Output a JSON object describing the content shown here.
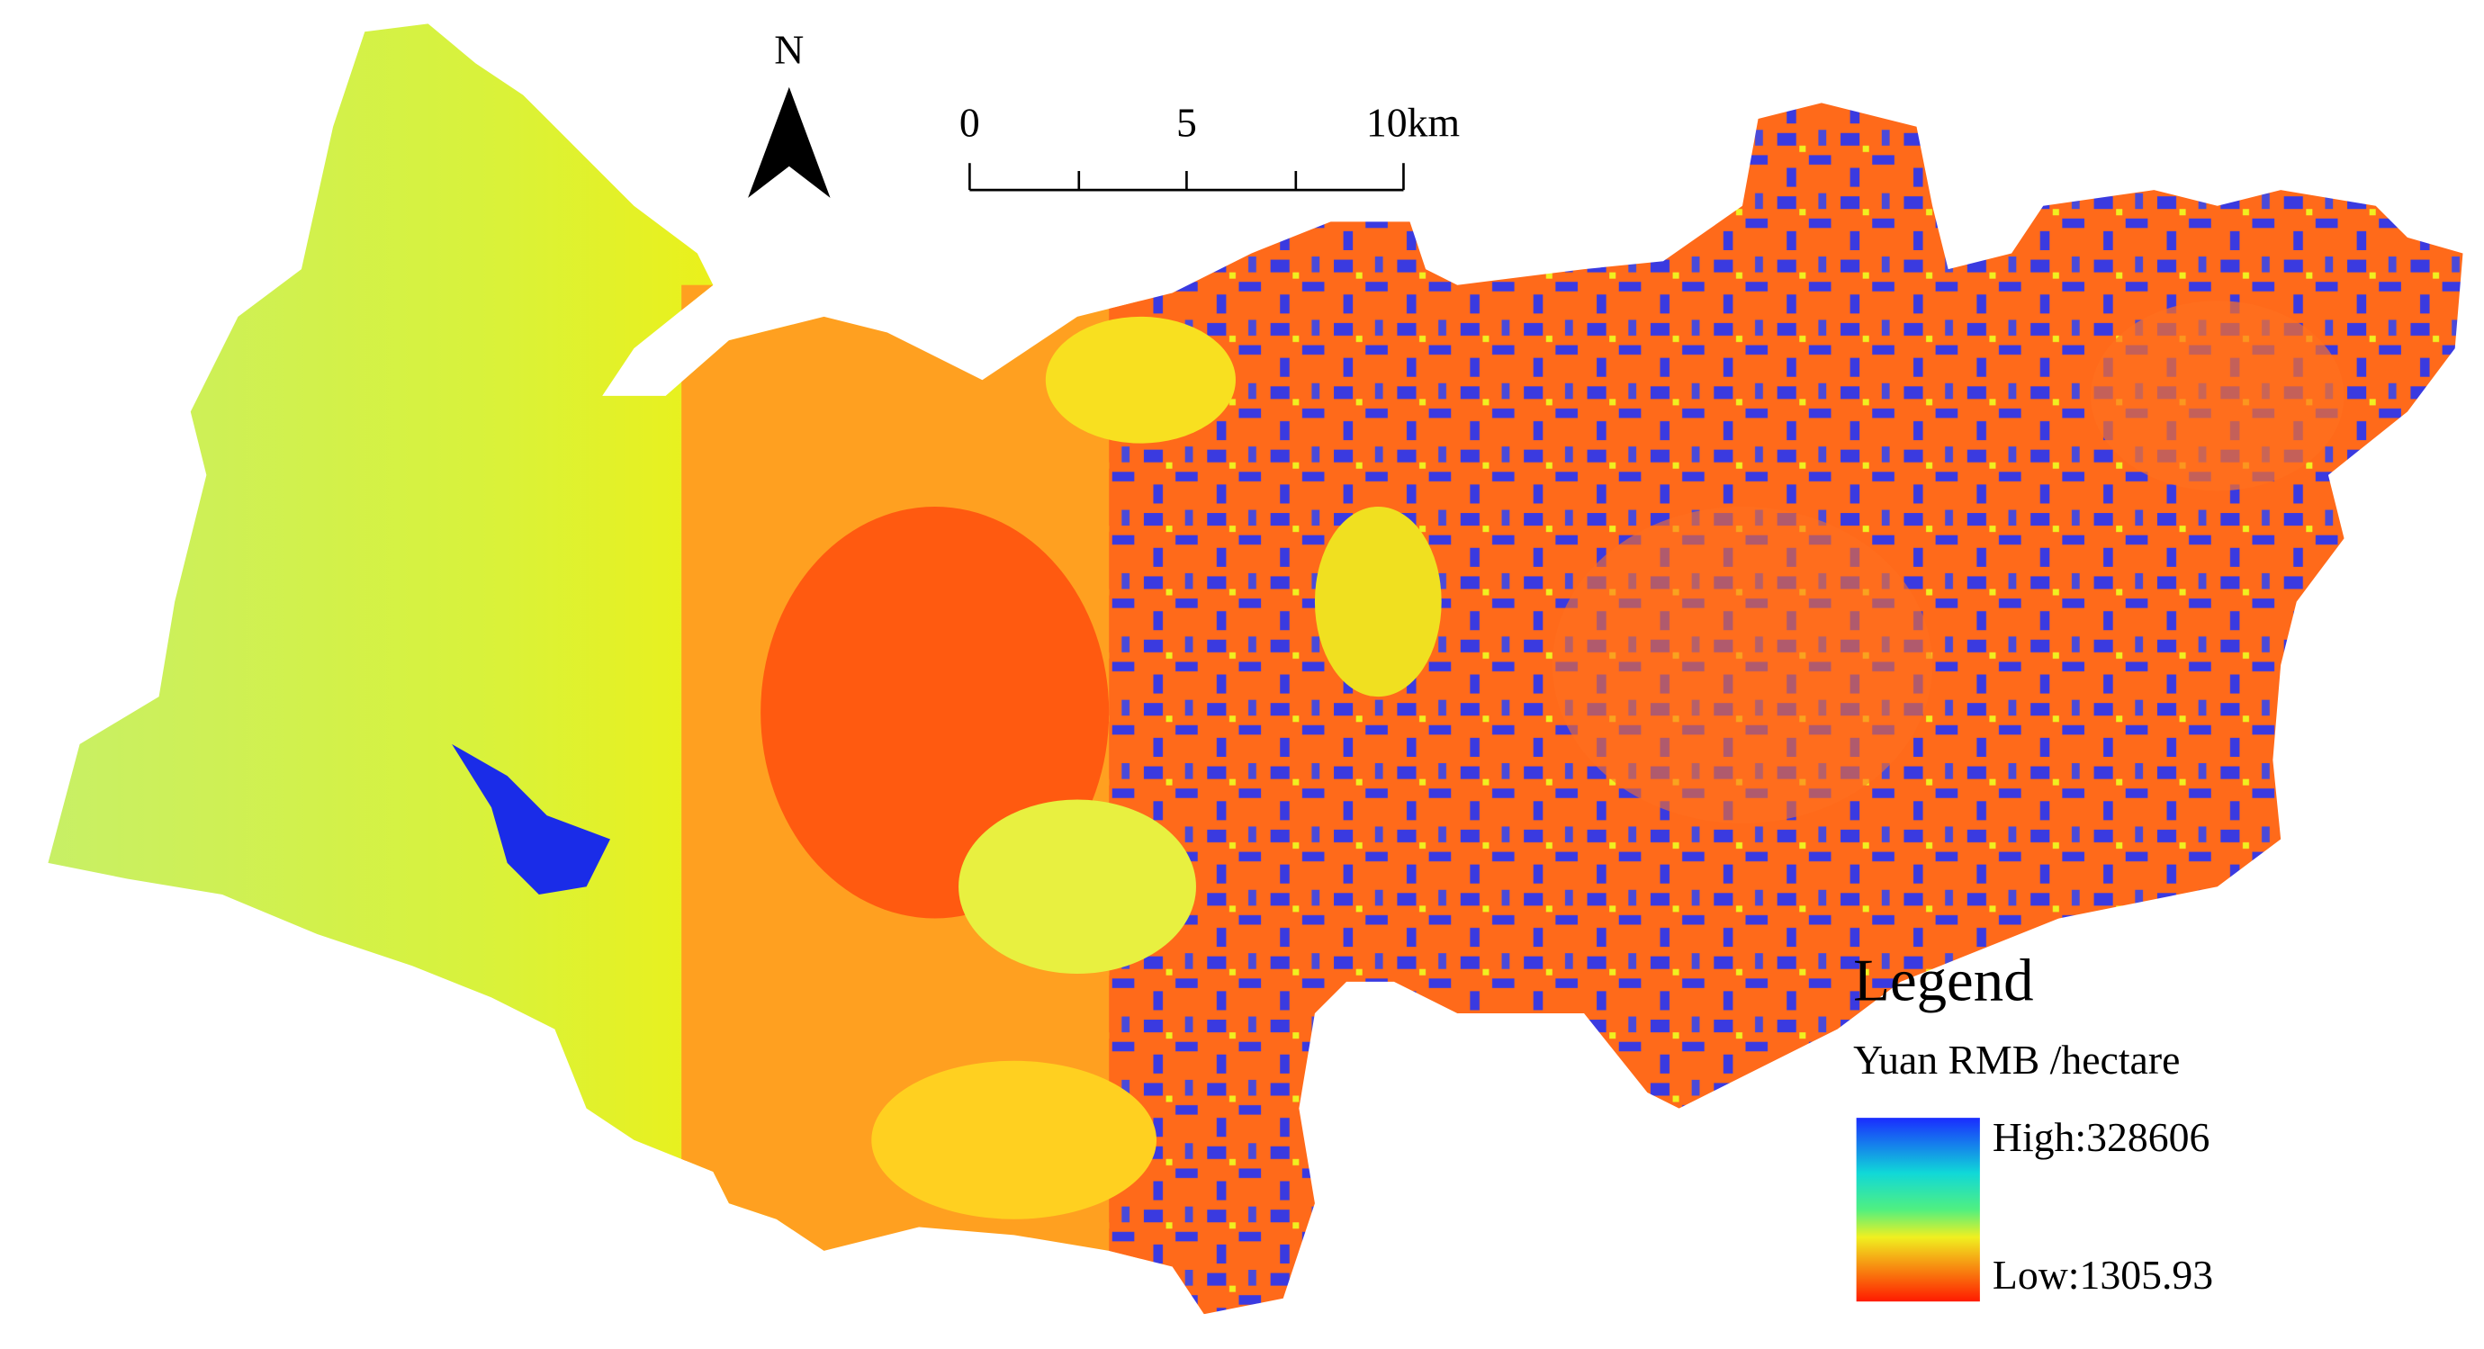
{
  "north_label": "N",
  "scale_bar": {
    "labels": [
      "0",
      "5",
      "10km"
    ]
  },
  "legend": {
    "title": "Legend",
    "unit": "Yuan RMB /hectare",
    "high": "High:328606",
    "low": "Low:1305.93"
  }
}
